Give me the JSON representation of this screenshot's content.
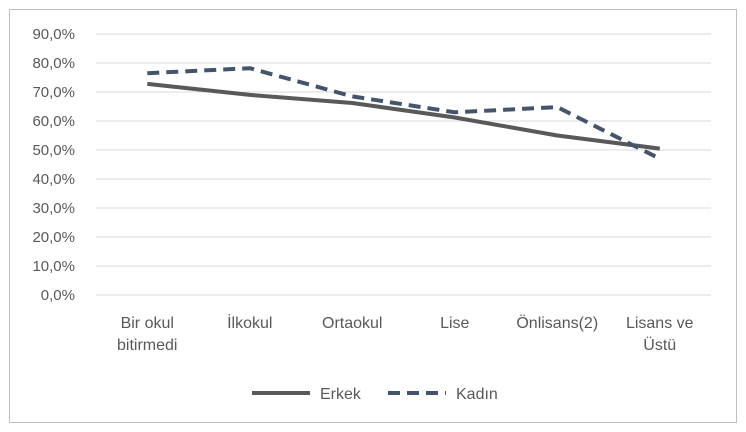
{
  "chart_data": {
    "type": "line",
    "title": "",
    "xlabel": "",
    "ylabel": "",
    "categories": [
      [
        "Bir okul",
        "bitirmedi"
      ],
      [
        "İlkokul"
      ],
      [
        "Ortaokul"
      ],
      [
        "Lise"
      ],
      [
        "Önlisans(2)"
      ],
      [
        "Lisans ve",
        "Üstü"
      ]
    ],
    "yticks": [
      "0,0%",
      "10,0%",
      "20,0%",
      "30,0%",
      "40,0%",
      "50,0%",
      "60,0%",
      "70,0%",
      "80,0%",
      "90,0%"
    ],
    "ylim": [
      0,
      90
    ],
    "grid": true,
    "legend_position": "bottom",
    "series": [
      {
        "name": "Erkek",
        "style": "solid",
        "color": "#595959",
        "values": [
          72.8,
          69.0,
          66.2,
          61.2,
          55.0,
          50.5
        ]
      },
      {
        "name": "Kadın",
        "style": "dashed",
        "color": "#44546A",
        "values": [
          76.5,
          78.2,
          68.5,
          63.0,
          64.8,
          47.0
        ]
      }
    ],
    "colors": {
      "grid": "#d9d9d9",
      "border": "#bfbfbf",
      "text": "#595959"
    }
  }
}
